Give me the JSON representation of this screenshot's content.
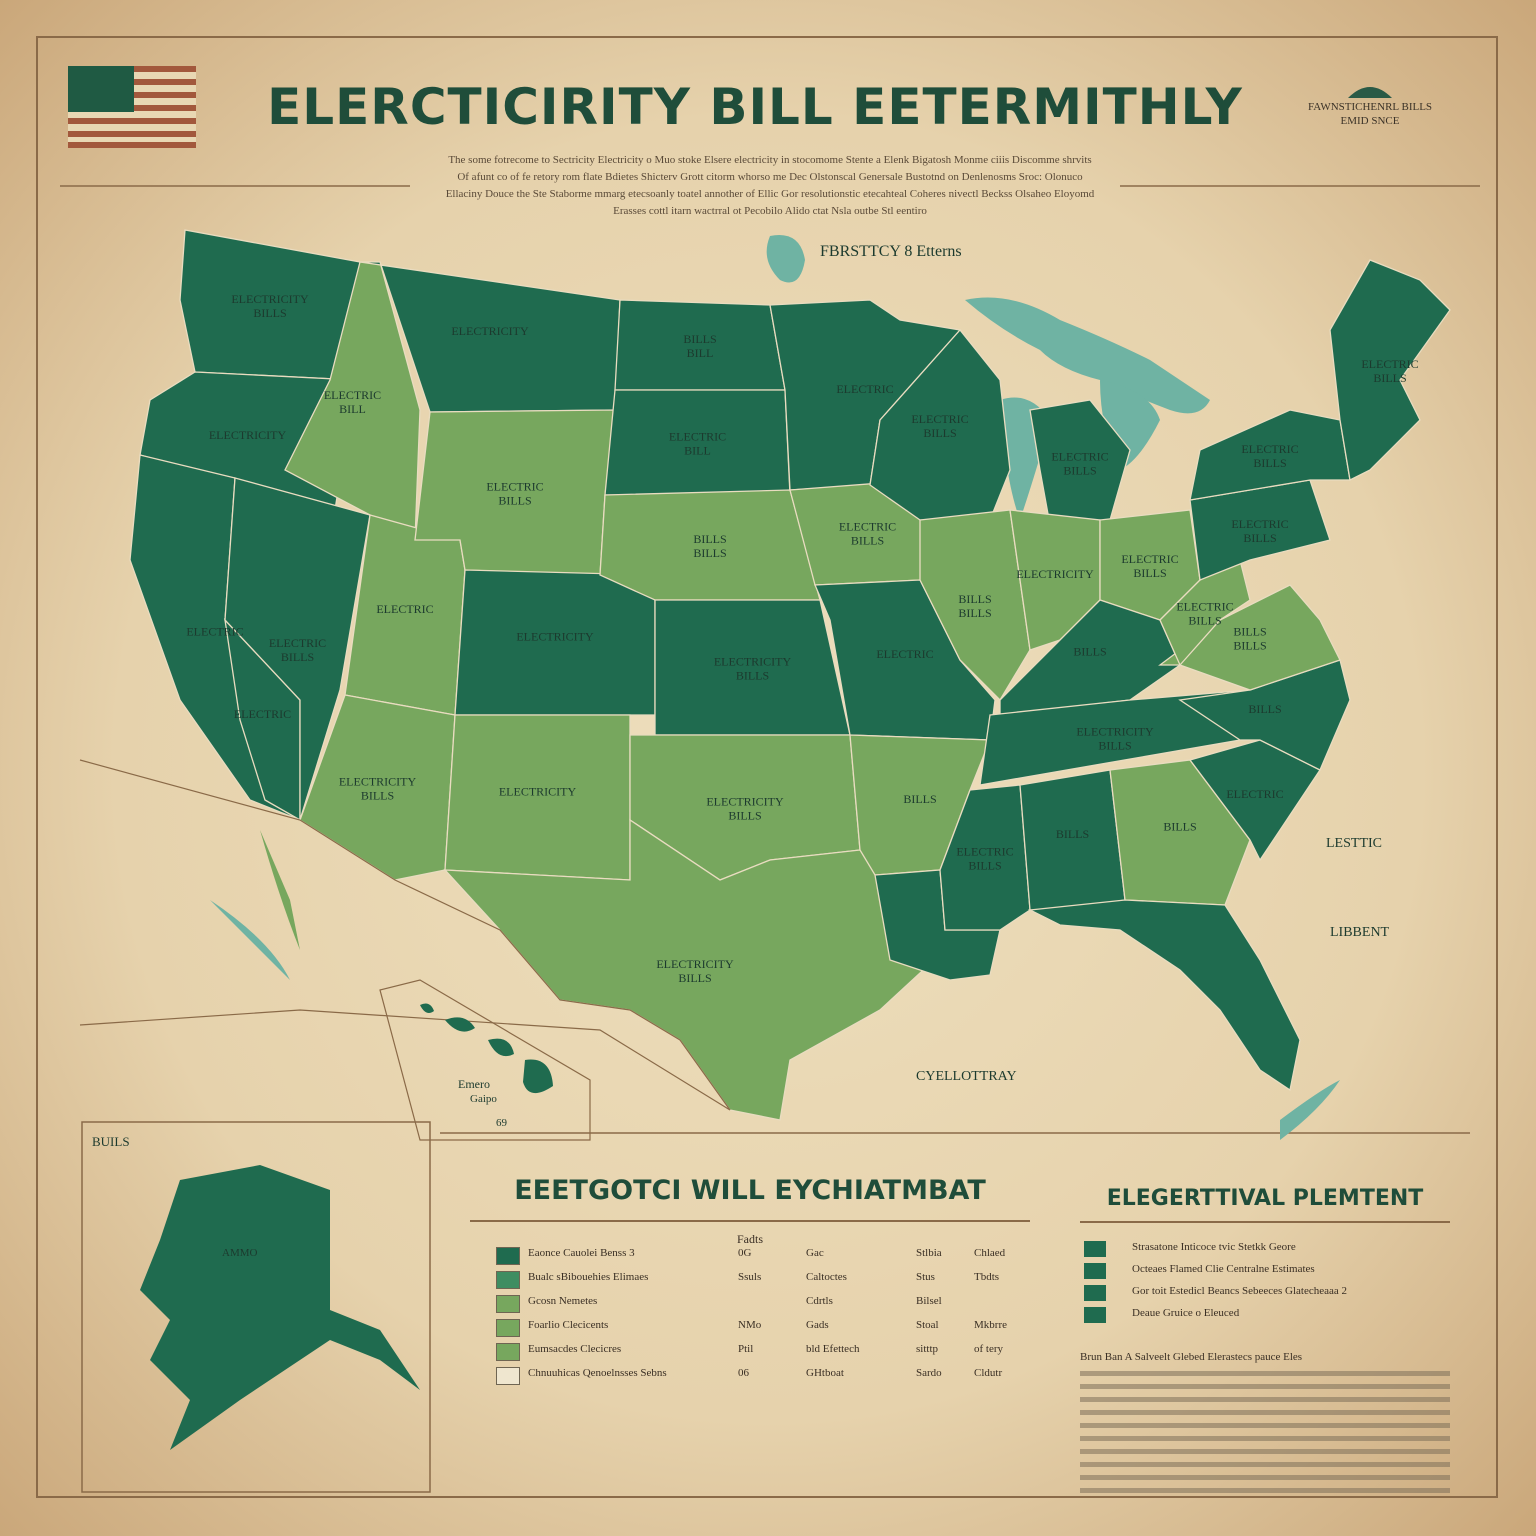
{
  "title": "ELERCTICIRITY BILL EETERMITHLY",
  "subtitle_lines": [
    "The some fotrecome to Sectricity Electricity o Muo stoke Elsere electricity in stocomome Stente a Elenk Bigatosh Monme ciiis Discomme shrvits",
    "Of afunt co of fe retory rom flate Bdietes Shicterv Grott citorm whorso me Dec Olstonscal Genersale Bustotnd on Denlenosms Sroc: Olonuco",
    "Ellaciny Douce the Ste Staborme mmarg etecsoanly toatel annother of Ellic Gor resolutionstic etecahteal Coheres nivectl Beckss Olsaheo Eloyomd",
    "Erasses cottl itarn wactrral ot Pecobilo Alido ctat Nsla outbe Stl eentiro"
  ],
  "corner": {
    "line1": "FAWNSTICHENRL BILLS",
    "line2": "EMID SNCE"
  },
  "map": {
    "inset_label": "FBRSTTCY 8 Etterns",
    "right_labels": [
      "LESTTIC",
      "LIBBENT"
    ],
    "gulf_label": "CYELLOTTRAY",
    "hawaii_label_1": "Emero",
    "hawaii_label_2": "Gaipo",
    "hawaii_code": "69",
    "alaska_box_label": "BUILS",
    "alaska_label": "AMMO",
    "colors": {
      "dark": "#1f6b4f",
      "mid": "#3e8d61",
      "light": "#77a75e",
      "water": "#6fb3a3"
    },
    "regions": [
      {
        "name": "Washington",
        "label1": "ELECTRICITY",
        "label2": "BILLS"
      },
      {
        "name": "Oregon",
        "label1": "ELECTRICITY",
        "label2": ""
      },
      {
        "name": "California-north",
        "label1": "ELECTRIC",
        "label2": ""
      },
      {
        "name": "California-south",
        "label1": "ELECTRIC",
        "label2": ""
      },
      {
        "name": "Nevada",
        "label1": "ELECTRIC",
        "label2": "BILLS"
      },
      {
        "name": "Idaho",
        "label1": "ELECTRIC",
        "label2": "BILL"
      },
      {
        "name": "Utah",
        "label1": "ELECTRIC",
        "label2": ""
      },
      {
        "name": "Arizona",
        "label1": "ELECTRICITY",
        "label2": "BILLS"
      },
      {
        "name": "Montana",
        "label1": "ELECTRICITY",
        "label2": ""
      },
      {
        "name": "Wyoming",
        "label1": "ELECTRIC",
        "label2": "BILLS"
      },
      {
        "name": "Colorado",
        "label1": "ELECTRICITY",
        "label2": ""
      },
      {
        "name": "New Mexico",
        "label1": "ELECTRICITY",
        "label2": ""
      },
      {
        "name": "North Dakota",
        "label1": "BILLS",
        "label2": "BILL"
      },
      {
        "name": "South Dakota",
        "label1": "ELECTRIC",
        "label2": "BILL"
      },
      {
        "name": "Nebraska",
        "label1": "BILLS",
        "label2": "BILLS"
      },
      {
        "name": "Kansas",
        "label1": "ELECTRICITY",
        "label2": "BILLS"
      },
      {
        "name": "Oklahoma",
        "label1": "ELECTRICITY",
        "label2": "BILLS"
      },
      {
        "name": "Texas",
        "label1": "ELECTRICITY",
        "label2": "BILLS"
      },
      {
        "name": "Minnesota",
        "label1": "ELECTRIC",
        "label2": ""
      },
      {
        "name": "Iowa",
        "label1": "ELECTRIC",
        "label2": "BILLS"
      },
      {
        "name": "Missouri",
        "label1": "ELECTRIC",
        "label2": ""
      },
      {
        "name": "Arkansas",
        "label1": "BILLS",
        "label2": ""
      },
      {
        "name": "Louisiana",
        "label1": "",
        "label2": ""
      },
      {
        "name": "Wisconsin",
        "label1": "ELECTRIC",
        "label2": "BILLS"
      },
      {
        "name": "Illinois",
        "label1": "BILLS",
        "label2": "BILLS"
      },
      {
        "name": "Michigan",
        "label1": "ELECTRIC",
        "label2": "BILLS"
      },
      {
        "name": "Indiana",
        "label1": "ELECTRICITY",
        "label2": ""
      },
      {
        "name": "Ohio",
        "label1": "ELECTRIC",
        "label2": "BILLS"
      },
      {
        "name": "Kentucky",
        "label1": "BILLS",
        "label2": ""
      },
      {
        "name": "Tennessee",
        "label1": "ELECTRICITY",
        "label2": "BILLS"
      },
      {
        "name": "Mississippi",
        "label1": "ELECTRIC",
        "label2": "BILLS"
      },
      {
        "name": "Alabama",
        "label1": "BILLS",
        "label2": ""
      },
      {
        "name": "Georgia",
        "label1": "BILLS",
        "label2": ""
      },
      {
        "name": "Florida",
        "label1": "",
        "label2": ""
      },
      {
        "name": "South Carolina",
        "label1": "ELECTRIC",
        "label2": ""
      },
      {
        "name": "North Carolina",
        "label1": "BILLS",
        "label2": ""
      },
      {
        "name": "Virginia",
        "label1": "BILLS",
        "label2": "BILLS"
      },
      {
        "name": "West Virginia",
        "label1": "ELECTRIC",
        "label2": "BILLS"
      },
      {
        "name": "Pennsylvania",
        "label1": "ELECTRIC",
        "label2": "BILLS"
      },
      {
        "name": "New York",
        "label1": "ELECTRIC",
        "label2": "BILLS"
      },
      {
        "name": "New England",
        "label1": "ELECTRIC",
        "label2": "BILLS"
      }
    ]
  },
  "legend_main": {
    "title": "EEETGOTCI WILL EYCHIATMBAT",
    "col_header": "Fadts",
    "rows": [
      {
        "label": "Eaonce Cauolei Benss 3",
        "c1": "0G",
        "c2": "Gac",
        "c3": "Stlbia",
        "c4": "Chlaed"
      },
      {
        "label": "Bualc sBibouehies Elimaes",
        "c1": "Ssuls",
        "c2": "Caltoctes",
        "c3": "Stus",
        "c4": "Tbdts"
      },
      {
        "label": "Gcosn Nemetes",
        "c1": "",
        "c2": "Cdrtls",
        "c3": "Bilsel",
        "c4": ""
      },
      {
        "label": "Foarlio Clecicents",
        "c1": "NMo",
        "c2": "Gads",
        "c3": "Stoal",
        "c4": "Mkbrre"
      },
      {
        "label": "Eumsacdes Clecicres",
        "c1": "Ptil",
        "c2": "bld Efettech",
        "c3": "sitttp",
        "c4": "of tery"
      },
      {
        "label": "Chnuuhicas Qenoelnsses Sebns",
        "c1": "06",
        "c2": "GHtboat",
        "c3": "Sardo",
        "c4": "Cldutr"
      }
    ]
  },
  "legend_side": {
    "title": "ELEGERTTIVAL PLEMTENT",
    "rows": [
      "Strasatone Inticoce tvic Stetkk Geore",
      "Octeaes Flamed Clie Centralne Estimates",
      "Gor toit Estedicl Beancs Sebeeces Glatecheaaa 2",
      "Deaue Gruice o Eleuced"
    ],
    "paragraph": "Brun Ban A Salveelt Glebed Elerastecs pauce Eles"
  }
}
